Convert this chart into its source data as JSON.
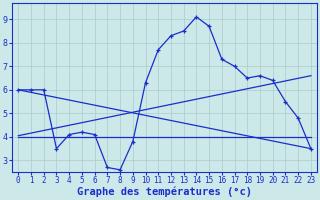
{
  "hours": [
    0,
    1,
    2,
    3,
    4,
    5,
    6,
    7,
    8,
    9,
    10,
    11,
    12,
    13,
    14,
    15,
    16,
    17,
    18,
    19,
    20,
    21,
    22,
    23
  ],
  "temp_curve": [
    6.0,
    6.0,
    6.0,
    3.5,
    4.1,
    4.2,
    4.1,
    2.7,
    2.6,
    3.8,
    6.3,
    7.7,
    8.3,
    8.5,
    9.1,
    8.7,
    7.3,
    7.0,
    6.5,
    6.6,
    6.4,
    5.5,
    4.8,
    3.5
  ],
  "line1_x": [
    0,
    23
  ],
  "line1_y": [
    6.0,
    3.5
  ],
  "line2_x": [
    0,
    23
  ],
  "line2_y": [
    4.05,
    6.6
  ],
  "line3_x": [
    0,
    23
  ],
  "line3_y": [
    4.0,
    4.0
  ],
  "xlim_min": -0.5,
  "xlim_max": 23.5,
  "ylim_min": 2.5,
  "ylim_max": 9.7,
  "yticks": [
    3,
    4,
    5,
    6,
    7,
    8,
    9
  ],
  "xticks": [
    0,
    1,
    2,
    3,
    4,
    5,
    6,
    7,
    8,
    9,
    10,
    11,
    12,
    13,
    14,
    15,
    16,
    17,
    18,
    19,
    20,
    21,
    22,
    23
  ],
  "xlabel": "Graphe des températures (°c)",
  "bg_color": "#cce8e8",
  "line_color": "#1a2ecc",
  "grid_color": "#aacccc",
  "tick_fontsize": 5.5,
  "xlabel_fontsize": 7.5,
  "xlabel_bold": true
}
